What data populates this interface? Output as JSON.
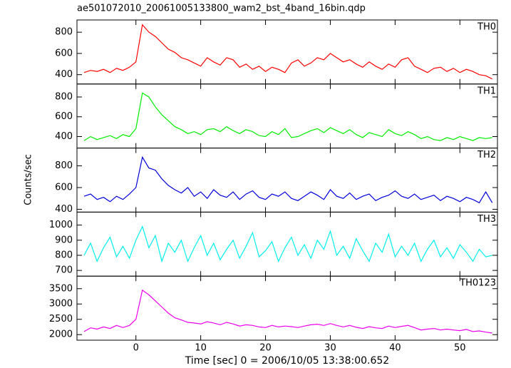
{
  "title": "ae501072010_20061005133800_wam2_bst_4band_16bin.qdp",
  "y_label": "Counts/sec",
  "x_label": "Time [sec] 0 = 2006/10/05 13:38:00.652",
  "chart_data": [
    {
      "type": "line",
      "label": "TH0",
      "color": "#ff0000",
      "x": [
        -8,
        -7,
        -6,
        -5,
        -4,
        -3,
        -2,
        -1,
        0,
        1,
        2,
        3,
        4,
        5,
        6,
        7,
        8,
        9,
        10,
        11,
        12,
        13,
        14,
        15,
        16,
        17,
        18,
        19,
        20,
        21,
        22,
        23,
        24,
        25,
        26,
        27,
        28,
        29,
        30,
        31,
        32,
        33,
        34,
        35,
        36,
        37,
        38,
        39,
        40,
        41,
        42,
        43,
        44,
        45,
        46,
        47,
        48,
        49,
        50,
        51,
        52,
        53,
        54,
        55
      ],
      "values": [
        420,
        440,
        430,
        450,
        420,
        460,
        440,
        470,
        520,
        870,
        800,
        760,
        700,
        640,
        610,
        560,
        540,
        510,
        480,
        560,
        520,
        490,
        560,
        540,
        470,
        500,
        450,
        480,
        430,
        470,
        450,
        420,
        510,
        540,
        480,
        510,
        560,
        540,
        600,
        560,
        520,
        540,
        500,
        470,
        520,
        480,
        450,
        500,
        470,
        540,
        560,
        480,
        450,
        420,
        460,
        470,
        430,
        460,
        420,
        450,
        430,
        400,
        390,
        360
      ],
      "xlim": [
        -9.1,
        55.8
      ],
      "ylim": [
        312,
        915
      ],
      "xticks": [
        0,
        10,
        20,
        30,
        40,
        50
      ],
      "yticks": [
        400,
        600,
        800
      ]
    },
    {
      "type": "line",
      "label": "TH1",
      "color": "#00ee00",
      "x": [
        -8,
        -7,
        -6,
        -5,
        -4,
        -3,
        -2,
        -1,
        0,
        1,
        2,
        3,
        4,
        5,
        6,
        7,
        8,
        9,
        10,
        11,
        12,
        13,
        14,
        15,
        16,
        17,
        18,
        19,
        20,
        21,
        22,
        23,
        24,
        25,
        26,
        27,
        28,
        29,
        30,
        31,
        32,
        33,
        34,
        35,
        36,
        37,
        38,
        39,
        40,
        41,
        42,
        43,
        44,
        45,
        46,
        47,
        48,
        49,
        50,
        51,
        52,
        53,
        54,
        55
      ],
      "values": [
        360,
        400,
        370,
        390,
        410,
        380,
        420,
        400,
        480,
        840,
        800,
        700,
        620,
        560,
        500,
        470,
        430,
        450,
        420,
        470,
        480,
        450,
        500,
        460,
        430,
        470,
        450,
        410,
        400,
        450,
        420,
        480,
        390,
        400,
        430,
        460,
        480,
        440,
        490,
        460,
        430,
        470,
        420,
        390,
        440,
        420,
        400,
        470,
        430,
        410,
        450,
        420,
        380,
        400,
        370,
        360,
        390,
        370,
        400,
        380,
        360,
        390,
        380,
        390
      ],
      "xlim": [
        -9.1,
        55.8
      ],
      "ylim": [
        284,
        931
      ],
      "xticks": [
        0,
        10,
        20,
        30,
        40,
        50
      ],
      "yticks": [
        400,
        600,
        800
      ]
    },
    {
      "type": "line",
      "label": "TH2",
      "color": "#0000dd",
      "x": [
        -8,
        -7,
        -6,
        -5,
        -4,
        -3,
        -2,
        -1,
        0,
        1,
        2,
        3,
        4,
        5,
        6,
        7,
        8,
        9,
        10,
        11,
        12,
        13,
        14,
        15,
        16,
        17,
        18,
        19,
        20,
        21,
        22,
        23,
        24,
        25,
        26,
        27,
        28,
        29,
        30,
        31,
        32,
        33,
        34,
        35,
        36,
        37,
        38,
        39,
        40,
        41,
        42,
        43,
        44,
        45,
        46,
        47,
        48,
        49,
        50,
        51,
        52,
        53,
        54,
        55
      ],
      "values": [
        520,
        540,
        490,
        510,
        470,
        520,
        490,
        540,
        600,
        880,
        780,
        760,
        680,
        620,
        580,
        550,
        600,
        520,
        560,
        500,
        580,
        530,
        510,
        560,
        490,
        540,
        570,
        510,
        490,
        540,
        520,
        560,
        500,
        480,
        520,
        560,
        530,
        490,
        580,
        520,
        500,
        550,
        490,
        520,
        540,
        480,
        510,
        530,
        570,
        520,
        500,
        540,
        490,
        510,
        530,
        480,
        520,
        500,
        470,
        510,
        490,
        460,
        560,
        460
      ],
      "xlim": [
        -9.1,
        55.8
      ],
      "ylim": [
        374,
        964
      ],
      "xticks": [
        0,
        10,
        20,
        30,
        40,
        50
      ],
      "yticks": [
        400,
        600,
        800
      ]
    },
    {
      "type": "line",
      "label": "TH3",
      "color": "#00eeee",
      "x": [
        -8,
        -7,
        -6,
        -5,
        -4,
        -3,
        -2,
        -1,
        0,
        1,
        2,
        3,
        4,
        5,
        6,
        7,
        8,
        9,
        10,
        11,
        12,
        13,
        14,
        15,
        16,
        17,
        18,
        19,
        20,
        21,
        22,
        23,
        24,
        25,
        26,
        27,
        28,
        29,
        30,
        31,
        32,
        33,
        34,
        35,
        36,
        37,
        38,
        39,
        40,
        41,
        42,
        43,
        44,
        45,
        46,
        47,
        48,
        49,
        50,
        51,
        52,
        53,
        54,
        55
      ],
      "values": [
        800,
        880,
        760,
        850,
        920,
        790,
        860,
        780,
        900,
        990,
        850,
        930,
        760,
        880,
        820,
        900,
        760,
        850,
        930,
        800,
        880,
        770,
        840,
        900,
        780,
        860,
        950,
        790,
        830,
        890,
        760,
        850,
        920,
        800,
        870,
        780,
        900,
        840,
        960,
        800,
        860,
        780,
        910,
        830,
        760,
        880,
        820,
        940,
        790,
        860,
        800,
        880,
        760,
        840,
        900,
        790,
        850,
        780,
        870,
        820,
        760,
        840,
        790,
        800
      ],
      "xlim": [
        -9.1,
        55.8
      ],
      "ylim": [
        662,
        1086
      ],
      "xticks": [
        0,
        10,
        20,
        30,
        40,
        50
      ],
      "yticks": [
        700,
        800,
        900,
        1000
      ]
    },
    {
      "type": "line",
      "label": "TH0123",
      "color": "#ee00ee",
      "x": [
        -8,
        -7,
        -6,
        -5,
        -4,
        -3,
        -2,
        -1,
        0,
        1,
        2,
        3,
        4,
        5,
        6,
        7,
        8,
        9,
        10,
        11,
        12,
        13,
        14,
        15,
        16,
        17,
        18,
        19,
        20,
        21,
        22,
        23,
        24,
        25,
        26,
        27,
        28,
        29,
        30,
        31,
        32,
        33,
        34,
        35,
        36,
        37,
        38,
        39,
        40,
        41,
        42,
        43,
        44,
        45,
        46,
        47,
        48,
        49,
        50,
        51,
        52,
        53,
        54,
        55
      ],
      "values": [
        2100,
        2220,
        2180,
        2250,
        2200,
        2300,
        2230,
        2300,
        2500,
        3450,
        3300,
        3100,
        2900,
        2700,
        2550,
        2480,
        2400,
        2380,
        2350,
        2420,
        2380,
        2320,
        2400,
        2350,
        2280,
        2320,
        2300,
        2250,
        2230,
        2300,
        2250,
        2280,
        2260,
        2230,
        2280,
        2320,
        2340,
        2300,
        2360,
        2300,
        2250,
        2300,
        2240,
        2200,
        2260,
        2220,
        2200,
        2280,
        2230,
        2270,
        2300,
        2230,
        2150,
        2180,
        2200,
        2150,
        2180,
        2150,
        2130,
        2170,
        2100,
        2120,
        2080,
        2050
      ],
      "xlim": [
        -9.1,
        55.8
      ],
      "ylim": [
        1818,
        3909
      ],
      "xticks": [
        0,
        10,
        20,
        30,
        40,
        50
      ],
      "yticks": [
        2000,
        2500,
        3000,
        3500
      ]
    }
  ]
}
